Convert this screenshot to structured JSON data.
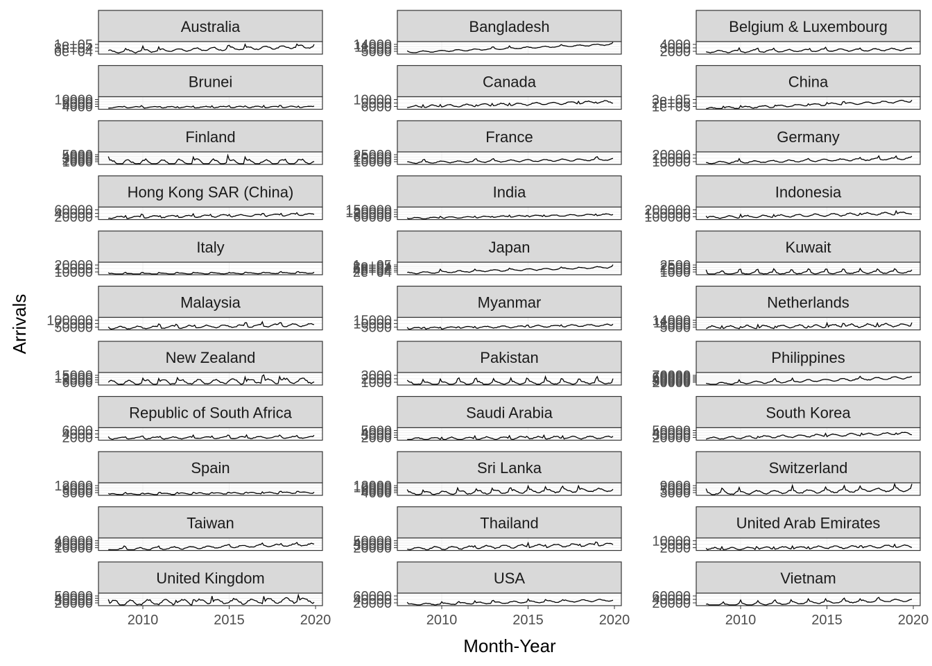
{
  "chart_data": {
    "type": "line",
    "xlabel": "Month-Year",
    "ylabel": "Arrivals",
    "x_range": [
      2008.0,
      2019.92
    ],
    "x_ticks": [
      2010,
      2015,
      2020
    ],
    "x_tick_labels": [
      "2010",
      "2015",
      "2020"
    ],
    "grid": true,
    "layout": {
      "columns": 3,
      "rows": 11
    },
    "colors": {
      "line": "#000000",
      "strip": "#d9d9d9",
      "border": "#333333",
      "grid": "#ebebeb"
    },
    "facets": [
      {
        "name": "Australia",
        "y_range": [
          38000,
          132000
        ],
        "y_tick_labels": [
          "1e+05",
          "8e+04",
          "6e+04"
        ],
        "base": 55000,
        "trend": 40000,
        "amp": 22000,
        "spike": 0.05,
        "seed": 1
      },
      {
        "name": "Bangladesh",
        "y_range": [
          2500,
          16500
        ],
        "y_tick_labels": [
          "14000",
          "11000",
          "8000",
          "5000"
        ],
        "base": 4500,
        "trend": 9000,
        "amp": 1500,
        "spike": 0.05,
        "seed": 2
      },
      {
        "name": "Belgium & Luxembourg",
        "y_range": [
          700,
          4800
        ],
        "y_tick_labels": [
          "4000",
          "3000",
          "2000"
        ],
        "base": 1500,
        "trend": 800,
        "amp": 700,
        "spike": 0.25,
        "seed": 3
      },
      {
        "name": "Brunei",
        "y_range": [
          1000,
          14000
        ],
        "y_tick_labels": [
          "10000",
          "8000",
          "6000",
          "4000"
        ],
        "base": 3000,
        "trend": 500,
        "amp": 1500,
        "spike": 0.45,
        "seed": 4
      },
      {
        "name": "Canada",
        "y_range": [
          3000,
          16500
        ],
        "y_tick_labels": [
          "10000",
          "9000",
          "6000"
        ],
        "base": 5500,
        "trend": 5500,
        "amp": 2500,
        "spike": 0.05,
        "seed": 5
      },
      {
        "name": "China",
        "y_range": [
          5000,
          540000
        ],
        "y_tick_labels": [
          "3e+05",
          "2e+05",
          "1e+05"
        ],
        "base": 30000,
        "trend": 320000,
        "amp": 90000,
        "spike": 0.1,
        "seed": 6
      },
      {
        "name": "Finland",
        "y_range": [
          200,
          6500
        ],
        "y_tick_labels": [
          "5000",
          "4000",
          "3000",
          "2000",
          "1000"
        ],
        "base": 1200,
        "trend": 300,
        "amp": 2600,
        "spike": 0.0,
        "seed": 7
      },
      {
        "name": "France",
        "y_range": [
          5000,
          32000
        ],
        "y_tick_labels": [
          "25000",
          "20000",
          "15000",
          "10000"
        ],
        "base": 9000,
        "trend": 7000,
        "amp": 4000,
        "spike": 0.3,
        "seed": 8
      },
      {
        "name": "Germany",
        "y_range": [
          8000,
          34000
        ],
        "y_tick_labels": [
          "20000",
          "15000",
          "10000"
        ],
        "base": 11500,
        "trend": 9000,
        "amp": 4000,
        "spike": 0.1,
        "seed": 9
      },
      {
        "name": "Hong Kong SAR (China)",
        "y_range": [
          8000,
          80000
        ],
        "y_tick_labels": [
          "60000",
          "40000",
          "20000"
        ],
        "base": 20000,
        "trend": 18000,
        "amp": 12000,
        "spike": 0.35,
        "seed": 10
      },
      {
        "name": "India",
        "y_range": [
          20000,
          230000
        ],
        "y_tick_labels": [
          "150000",
          "120000",
          "90000",
          "60000"
        ],
        "base": 40000,
        "trend": 65000,
        "amp": 25000,
        "spike": 0.3,
        "seed": 11
      },
      {
        "name": "Indonesia",
        "y_range": [
          50000,
          270000
        ],
        "y_tick_labels": [
          "200000",
          "150000",
          "100000"
        ],
        "base": 85000,
        "trend": 80000,
        "amp": 40000,
        "spike": 0.1,
        "seed": 12
      },
      {
        "name": "Italy",
        "y_range": [
          2000,
          26000
        ],
        "y_tick_labels": [
          "20000",
          "15000",
          "10000"
        ],
        "base": 3500,
        "trend": 2000,
        "amp": 2000,
        "spike": 0.8,
        "seed": 13
      },
      {
        "name": "Japan",
        "y_range": [
          15000,
          130000
        ],
        "y_tick_labels": [
          "1e+05",
          "8e+04",
          "6e+04",
          "4e+04",
          "2e+04"
        ],
        "base": 30000,
        "trend": 55000,
        "amp": 15000,
        "spike": 0.1,
        "seed": 14
      },
      {
        "name": "Kuwait",
        "y_range": [
          400,
          3200
        ],
        "y_tick_labels": [
          "2500",
          "2000",
          "1500",
          "1000"
        ],
        "base": 700,
        "trend": 300,
        "amp": 500,
        "spike": 0.9,
        "seed": 15
      },
      {
        "name": "Malaysia",
        "y_range": [
          40000,
          140000
        ],
        "y_tick_labels": [
          "100000",
          "75000",
          "50000"
        ],
        "base": 55000,
        "trend": 25000,
        "amp": 20000,
        "spike": 0.2,
        "seed": 16
      },
      {
        "name": "Myanmar",
        "y_range": [
          4000,
          21000
        ],
        "y_tick_labels": [
          "15000",
          "10000",
          "5000"
        ],
        "base": 6000,
        "trend": 4500,
        "amp": 2500,
        "spike": 0.2,
        "seed": 17
      },
      {
        "name": "Netherlands",
        "y_range": [
          2000,
          16000
        ],
        "y_tick_labels": [
          "14000",
          "11000",
          "8000",
          "5000"
        ],
        "base": 4500,
        "trend": 3000,
        "amp": 3500,
        "spike": 0.35,
        "seed": 18
      },
      {
        "name": "New Zealand",
        "y_range": [
          5000,
          19000
        ],
        "y_tick_labels": [
          "15000",
          "12000",
          "9000",
          "6000"
        ],
        "base": 7500,
        "trend": 2500,
        "amp": 5000,
        "spike": 0.05,
        "seed": 19
      },
      {
        "name": "Pakistan",
        "y_range": [
          500,
          4200
        ],
        "y_tick_labels": [
          "3000",
          "2000",
          "1000"
        ],
        "base": 1000,
        "trend": 300,
        "amp": 900,
        "spike": 0.6,
        "seed": 20
      },
      {
        "name": "Philippines",
        "y_range": [
          12000,
          85000
        ],
        "y_tick_labels": [
          "70000",
          "60000",
          "50000",
          "40000",
          "30000",
          "20000"
        ],
        "base": 18000,
        "trend": 38000,
        "amp": 12000,
        "spike": 0.05,
        "seed": 21
      },
      {
        "name": "Republic of South Africa",
        "y_range": [
          500,
          8500
        ],
        "y_tick_labels": [
          "6000",
          "4000",
          "2000"
        ],
        "base": 1800,
        "trend": 600,
        "amp": 1200,
        "spike": 0.35,
        "seed": 22
      },
      {
        "name": "Saudi Arabia",
        "y_range": [
          1500,
          6500
        ],
        "y_tick_labels": [
          "5000",
          "4000",
          "3000",
          "2000"
        ],
        "base": 2000,
        "trend": 700,
        "amp": 1000,
        "spike": 0.3,
        "seed": 23
      },
      {
        "name": "South Korea",
        "y_range": [
          12000,
          66000
        ],
        "y_tick_labels": [
          "50000",
          "40000",
          "30000",
          "20000"
        ],
        "base": 20000,
        "trend": 22000,
        "amp": 10000,
        "spike": 0.05,
        "seed": 24
      },
      {
        "name": "Spain",
        "y_range": [
          1500,
          15000
        ],
        "y_tick_labels": [
          "12000",
          "9000",
          "6000",
          "3000"
        ],
        "base": 2500,
        "trend": 2000,
        "amp": 1500,
        "spike": 0.75,
        "seed": 25
      },
      {
        "name": "Sri Lanka",
        "y_range": [
          1500,
          15000
        ],
        "y_tick_labels": [
          "12000",
          "10000",
          "8000",
          "6000",
          "4000"
        ],
        "base": 3500,
        "trend": 4000,
        "amp": 3500,
        "spike": 0.25,
        "seed": 26
      },
      {
        "name": "Switzerland",
        "y_range": [
          1500,
          11000
        ],
        "y_tick_labels": [
          "9000",
          "7000",
          "5000",
          "3000"
        ],
        "base": 3000,
        "trend": 3000,
        "amp": 2500,
        "spike": 0.2,
        "seed": 27
      },
      {
        "name": "Taiwan",
        "y_range": [
          8000,
          52000
        ],
        "y_tick_labels": [
          "40000",
          "30000",
          "20000",
          "10000"
        ],
        "base": 11000,
        "trend": 18000,
        "amp": 8000,
        "spike": 0.15,
        "seed": 28
      },
      {
        "name": "Thailand",
        "y_range": [
          12000,
          66000
        ],
        "y_tick_labels": [
          "50000",
          "40000",
          "30000",
          "20000"
        ],
        "base": 20000,
        "trend": 18000,
        "amp": 12000,
        "spike": 0.2,
        "seed": 29
      },
      {
        "name": "United Arab Emirates",
        "y_range": [
          500,
          13500
        ],
        "y_tick_labels": [
          "10000",
          "5000",
          "2000"
        ],
        "base": 2000,
        "trend": 3000,
        "amp": 2500,
        "spike": 0.3,
        "seed": 30
      },
      {
        "name": "United Kingdom",
        "y_range": [
          15000,
          62000
        ],
        "y_tick_labels": [
          "50000",
          "40000",
          "30000",
          "20000"
        ],
        "base": 25000,
        "trend": 10000,
        "amp": 18000,
        "spike": 0.1,
        "seed": 31
      },
      {
        "name": "USA",
        "y_range": [
          12000,
          82000
        ],
        "y_tick_labels": [
          "60000",
          "40000",
          "20000"
        ],
        "base": 18000,
        "trend": 25000,
        "amp": 10000,
        "spike": 0.15,
        "seed": 32
      },
      {
        "name": "Vietnam",
        "y_range": [
          5000,
          90000
        ],
        "y_tick_labels": [
          "60000",
          "40000",
          "20000"
        ],
        "base": 8000,
        "trend": 35000,
        "amp": 15000,
        "spike": 0.35,
        "seed": 33
      }
    ]
  }
}
